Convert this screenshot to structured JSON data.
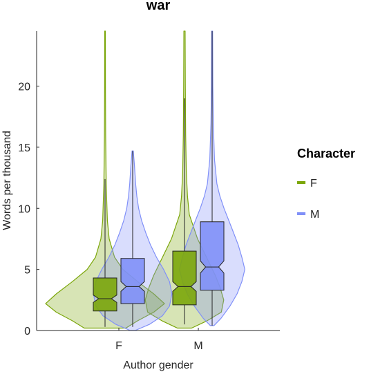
{
  "chart_data": {
    "type": "violin",
    "title": "war",
    "xlabel": "Author gender",
    "ylabel": "Words per thousand",
    "categories": [
      "F",
      "M"
    ],
    "ylim": [
      0,
      24.5
    ],
    "yticks": [
      0,
      5,
      10,
      15,
      20
    ],
    "grid": false,
    "legend": {
      "title": "Character",
      "placement": "right"
    },
    "colors": {
      "F": "#7ba60a",
      "M": "#8090f8"
    },
    "series": [
      {
        "name": "F",
        "color": "#7ba60a",
        "violins": [
          {
            "category": "F",
            "box": {
              "q1": 1.6,
              "median": 2.6,
              "q3": 4.3,
              "notch_lo": 2.3,
              "notch_hi": 2.9,
              "whisker_low": 0.3,
              "whisker_high": 12.4
            },
            "density": [
              [
                0.2,
                0.35
              ],
              [
                0.8,
                0.55
              ],
              [
                1.5,
                0.82
              ],
              [
                2.2,
                1.0
              ],
              [
                3.0,
                0.82
              ],
              [
                4.0,
                0.55
              ],
              [
                5.0,
                0.3
              ],
              [
                6.0,
                0.16
              ],
              [
                7.5,
                0.07
              ],
              [
                9.0,
                0.04
              ],
              [
                12,
                0.02
              ],
              [
                16,
                0.01
              ],
              [
                20,
                0.007
              ],
              [
                24.5,
                0.006
              ]
            ]
          },
          {
            "category": "M",
            "box": {
              "q1": 2.1,
              "median": 3.6,
              "q3": 6.5,
              "notch_lo": 3.2,
              "notch_hi": 4.0,
              "whisker_low": 0.5,
              "whisker_high": 19.0
            },
            "density": [
              [
                0.2,
                0.12
              ],
              [
                0.8,
                0.38
              ],
              [
                1.5,
                0.62
              ],
              [
                2.5,
                0.66
              ],
              [
                3.5,
                0.6
              ],
              [
                4.5,
                0.52
              ],
              [
                5.5,
                0.42
              ],
              [
                6.5,
                0.32
              ],
              [
                7.5,
                0.22
              ],
              [
                8.5,
                0.15
              ],
              [
                9.5,
                0.08
              ],
              [
                11,
                0.05
              ],
              [
                13,
                0.03
              ],
              [
                16,
                0.02
              ],
              [
                20,
                0.014
              ],
              [
                24.5,
                0.01
              ]
            ]
          }
        ]
      },
      {
        "name": "M",
        "color": "#8090f8",
        "violins": [
          {
            "category": "F",
            "box": {
              "q1": 2.2,
              "median": 3.6,
              "q3": 5.9,
              "notch_lo": 3.2,
              "notch_hi": 4.0,
              "whisker_low": 0.3,
              "whisker_high": 14.7
            },
            "density": [
              [
                0.0,
                0.04
              ],
              [
                0.5,
                0.28
              ],
              [
                1.2,
                0.5
              ],
              [
                2.0,
                0.62
              ],
              [
                3.0,
                0.66
              ],
              [
                4.0,
                0.62
              ],
              [
                5.0,
                0.52
              ],
              [
                6.0,
                0.4
              ],
              [
                7.0,
                0.3
              ],
              [
                8.0,
                0.22
              ],
              [
                9.0,
                0.15
              ],
              [
                10,
                0.1
              ],
              [
                11,
                0.07
              ],
              [
                12,
                0.05
              ],
              [
                13.5,
                0.03
              ],
              [
                14.7,
                0.01
              ]
            ]
          },
          {
            "category": "M",
            "box": {
              "q1": 3.3,
              "median": 5.2,
              "q3": 8.9,
              "notch_lo": 4.7,
              "notch_hi": 5.7,
              "whisker_low": 0.4,
              "whisker_high": 24.5
            },
            "density": [
              [
                0.4,
                0.03
              ],
              [
                1.0,
                0.15
              ],
              [
                2.0,
                0.3
              ],
              [
                3.0,
                0.42
              ],
              [
                4.0,
                0.5
              ],
              [
                5.0,
                0.55
              ],
              [
                6.0,
                0.5
              ],
              [
                7.0,
                0.44
              ],
              [
                8.0,
                0.36
              ],
              [
                9.0,
                0.28
              ],
              [
                10,
                0.2
              ],
              [
                11,
                0.13
              ],
              [
                12,
                0.08
              ],
              [
                14,
                0.04
              ],
              [
                17,
                0.02
              ],
              [
                20,
                0.012
              ],
              [
                24.5,
                0.008
              ]
            ]
          }
        ]
      }
    ]
  }
}
